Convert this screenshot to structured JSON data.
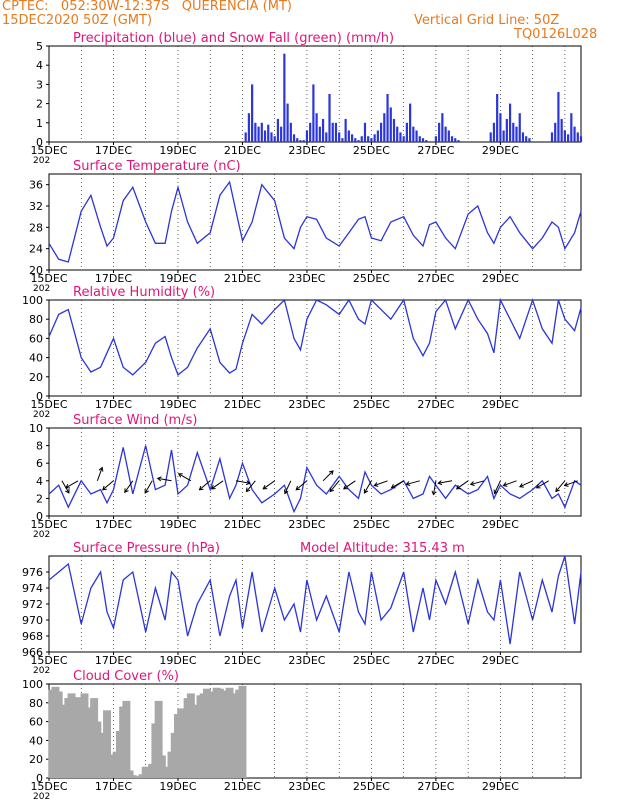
{
  "header": {
    "line1": "CPTEC:   052:30W-12:37S   QUERENCIA (MT)",
    "line2": "15DEC2020 50Z (GMT)",
    "grid_note": "Vertical Grid Line: 50Z",
    "code": "TQ0126L028"
  },
  "colors": {
    "header": "#e87a1e",
    "title": "#e0157a",
    "series": "#2b35d8",
    "snow": "#2aa52a",
    "cloud": "#a8a8a8",
    "grid": "#000000"
  },
  "x_tick_labels": [
    "15DEC",
    "17DEC",
    "19DEC",
    "21DEC",
    "23DEC",
    "25DEC",
    "27DEC",
    "29DEC"
  ],
  "stub_label": "202",
  "chart_data": [
    {
      "type": "bar",
      "title": "Precipitation (blue) and Snow Fall (green) (mm/h)",
      "ylim": [
        0,
        5
      ],
      "yticks": [
        "0",
        "1",
        "2",
        "3",
        "4",
        "5"
      ],
      "x": [
        6.1,
        6.2,
        6.3,
        6.4,
        6.5,
        6.6,
        6.7,
        6.8,
        6.9,
        7.0,
        7.1,
        7.2,
        7.3,
        7.4,
        7.5,
        7.6,
        7.7,
        7.8,
        7.9,
        8.0,
        8.1,
        8.2,
        8.3,
        8.4,
        8.5,
        8.6,
        8.7,
        8.8,
        8.9,
        9.0,
        9.1,
        9.2,
        9.3,
        9.4,
        9.5,
        9.6,
        9.7,
        9.8,
        9.9,
        10.0,
        10.1,
        10.2,
        10.3,
        10.4,
        10.5,
        10.6,
        10.7,
        10.8,
        10.9,
        11.0,
        11.1,
        11.2,
        11.3,
        11.4,
        11.5,
        11.6,
        11.7,
        12.0,
        12.1,
        12.2,
        12.3,
        12.4,
        12.5,
        12.6,
        12.7,
        13.7,
        13.8,
        13.9,
        14.0,
        14.1,
        14.2,
        14.3,
        14.4,
        14.5,
        14.6,
        14.7,
        14.8,
        14.9,
        15.6,
        15.7,
        15.8,
        15.9,
        16.0,
        16.1,
        16.2,
        16.3,
        16.4,
        16.5
      ],
      "series": [
        {
          "name": "Precipitation",
          "values": [
            0.5,
            1.5,
            3.0,
            1.0,
            0.8,
            1.0,
            0.6,
            0.9,
            0.5,
            0.3,
            1.2,
            0.8,
            4.6,
            2.0,
            1.0,
            0.4,
            0.2,
            0.1,
            0.1,
            0.6,
            1.0,
            3.0,
            1.5,
            0.8,
            1.2,
            0.5,
            2.5,
            1.0,
            1.0,
            0.5,
            0.2,
            1.2,
            0.6,
            0.4,
            0.2,
            0.1,
            0.3,
            1.0,
            0.3,
            0.2,
            0.4,
            0.6,
            1.0,
            1.5,
            2.5,
            1.8,
            1.2,
            0.8,
            0.5,
            0.3,
            1.0,
            2.0,
            0.8,
            0.6,
            0.3,
            0.2,
            0.1,
            0.3,
            1.0,
            1.5,
            0.8,
            0.6,
            0.3,
            0.2,
            0.1,
            0.5,
            1.0,
            2.5,
            1.5,
            0.6,
            1.2,
            2.0,
            1.0,
            0.8,
            1.5,
            0.5,
            0.3,
            0.2,
            0.5,
            1.0,
            2.6,
            1.2,
            0.6,
            0.4,
            1.5,
            0.8,
            0.5,
            0.3
          ]
        },
        {
          "name": "Snow Fall",
          "values": [
            0,
            0,
            0,
            0,
            0,
            0,
            0,
            0,
            0,
            0,
            0,
            0,
            0,
            0,
            0,
            0,
            0,
            0,
            0,
            0,
            0,
            0,
            0,
            0,
            0,
            0,
            0,
            0,
            0,
            0,
            0,
            0,
            0,
            0,
            0,
            0,
            0,
            0,
            0,
            0,
            0,
            0,
            0,
            0,
            0,
            0,
            0,
            0,
            0,
            0,
            0,
            0,
            0,
            0,
            0,
            0,
            0,
            0,
            0,
            0,
            0,
            0,
            0,
            0,
            0,
            0,
            0,
            0,
            0,
            0,
            0,
            0,
            0,
            0,
            0,
            0,
            0,
            0,
            0,
            0,
            0,
            0,
            0,
            0,
            0,
            0,
            0,
            0
          ]
        }
      ]
    },
    {
      "type": "line",
      "title": "Surface Temperature (nC)",
      "ylim": [
        20,
        38
      ],
      "yticks": [
        "20",
        "24",
        "28",
        "32",
        "36"
      ],
      "x": [
        0,
        0.3,
        0.6,
        1.0,
        1.3,
        1.6,
        1.8,
        2.0,
        2.3,
        2.6,
        3.0,
        3.3,
        3.6,
        3.8,
        4.0,
        4.3,
        4.6,
        5.0,
        5.3,
        5.6,
        5.8,
        6.0,
        6.3,
        6.6,
        7.0,
        7.3,
        7.6,
        7.8,
        8.0,
        8.3,
        8.6,
        9.0,
        9.3,
        9.6,
        9.8,
        10.0,
        10.3,
        10.6,
        11.0,
        11.3,
        11.6,
        11.8,
        12.0,
        12.3,
        12.6,
        13.0,
        13.3,
        13.6,
        13.8,
        14.0,
        14.3,
        14.6,
        15.0,
        15.3,
        15.6,
        15.8,
        16.0,
        16.3,
        16.5
      ],
      "values": [
        25,
        22,
        21.5,
        31,
        34,
        28,
        24.5,
        26,
        33,
        35.5,
        29,
        25,
        25,
        31,
        35.5,
        29,
        25,
        27,
        34,
        36.5,
        31,
        25.5,
        29,
        36,
        33,
        26,
        24,
        28,
        30,
        29.5,
        26,
        24.5,
        27,
        29.5,
        30,
        26,
        25.5,
        29,
        30,
        26.5,
        24.5,
        28.5,
        29,
        26,
        24,
        30.5,
        32,
        27,
        25,
        28,
        30,
        27,
        24,
        26,
        29,
        28,
        24,
        27,
        31
      ]
    },
    {
      "type": "line",
      "title": "Relative Humidity (%)",
      "ylim": [
        0,
        100
      ],
      "yticks": [
        "0",
        "20",
        "40",
        "60",
        "80",
        "100"
      ],
      "x": [
        0,
        0.3,
        0.6,
        1.0,
        1.3,
        1.6,
        1.8,
        2.0,
        2.3,
        2.6,
        3.0,
        3.3,
        3.6,
        3.8,
        4.0,
        4.3,
        4.6,
        5.0,
        5.3,
        5.6,
        5.8,
        6.0,
        6.3,
        6.6,
        7.0,
        7.3,
        7.6,
        7.8,
        8.0,
        8.3,
        8.6,
        9.0,
        9.3,
        9.6,
        9.8,
        10.0,
        10.3,
        10.6,
        11.0,
        11.3,
        11.6,
        11.8,
        12.0,
        12.3,
        12.6,
        13.0,
        13.3,
        13.6,
        13.8,
        14.0,
        14.3,
        14.6,
        15.0,
        15.3,
        15.6,
        15.8,
        16.0,
        16.3,
        16.5
      ],
      "values": [
        62,
        85,
        90,
        40,
        25,
        30,
        45,
        60,
        30,
        22,
        35,
        55,
        62,
        40,
        22,
        30,
        50,
        70,
        35,
        24,
        28,
        55,
        85,
        75,
        90,
        100,
        60,
        48,
        80,
        100,
        95,
        85,
        100,
        80,
        75,
        100,
        90,
        80,
        100,
        60,
        42,
        55,
        88,
        100,
        70,
        100,
        80,
        65,
        45,
        100,
        80,
        60,
        100,
        70,
        55,
        100,
        80,
        68,
        92
      ]
    },
    {
      "type": "line",
      "title": "Surface Wind (m/s)",
      "ylim": [
        0,
        10
      ],
      "yticks": [
        "0",
        "2",
        "4",
        "6",
        "8",
        "10"
      ],
      "x": [
        0,
        0.3,
        0.6,
        1.0,
        1.3,
        1.6,
        1.8,
        2.0,
        2.3,
        2.6,
        3.0,
        3.3,
        3.6,
        3.8,
        4.0,
        4.3,
        4.6,
        5.0,
        5.3,
        5.6,
        5.8,
        6.0,
        6.3,
        6.6,
        7.0,
        7.3,
        7.6,
        7.8,
        8.0,
        8.3,
        8.6,
        9.0,
        9.3,
        9.6,
        9.8,
        10.0,
        10.3,
        10.6,
        11.0,
        11.3,
        11.6,
        11.8,
        12.0,
        12.3,
        12.6,
        13.0,
        13.3,
        13.6,
        13.8,
        14.0,
        14.3,
        14.6,
        15.0,
        15.3,
        15.6,
        15.8,
        16.0,
        16.3,
        16.5
      ],
      "values": [
        2.5,
        3.5,
        1.0,
        4.0,
        2.5,
        3.0,
        1.5,
        3.0,
        7.8,
        2.5,
        8.0,
        3.0,
        3.5,
        7.5,
        2.5,
        3.5,
        7.2,
        3.0,
        6.5,
        2.0,
        3.5,
        6.0,
        3.0,
        1.5,
        2.5,
        3.5,
        0.5,
        2.0,
        5.5,
        3.5,
        2.5,
        4.5,
        3.0,
        2.0,
        5.0,
        3.5,
        2.5,
        3.0,
        4.0,
        2.0,
        2.5,
        4.5,
        3.5,
        2.0,
        3.5,
        2.5,
        3.0,
        4.5,
        2.0,
        3.5,
        2.5,
        2.0,
        3.0,
        4.0,
        2.0,
        2.5,
        1.0,
        4.0,
        3.5
      ],
      "arrows_x": [
        0.4,
        0.9,
        1.5,
        2.0,
        2.6,
        3.2,
        3.8,
        4.4,
        5.0,
        5.4,
        5.8,
        6.4,
        7.0,
        7.5,
        8.0,
        8.5,
        9.0,
        9.5,
        10.0,
        10.5,
        11.0,
        11.5,
        12.0,
        12.5,
        13.0,
        13.5,
        14.0,
        14.5,
        15.0,
        15.5,
        16.0,
        16.4
      ],
      "arrows_dir_deg": [
        300,
        210,
        70,
        220,
        235,
        240,
        170,
        150,
        220,
        215,
        350,
        230,
        215,
        245,
        220,
        45,
        230,
        215,
        240,
        200,
        210,
        195,
        260,
        190,
        215,
        195,
        245,
        200,
        205,
        210,
        230,
        200
      ]
    },
    {
      "type": "line",
      "title": "Surface Pressure (hPa)",
      "annotation": "Model Altitude: 315.43 m",
      "ylim": [
        966,
        978
      ],
      "yticks": [
        "966",
        "968",
        "970",
        "972",
        "974",
        "976"
      ],
      "x": [
        0,
        0.3,
        0.6,
        1.0,
        1.3,
        1.6,
        1.8,
        2.0,
        2.3,
        2.6,
        3.0,
        3.3,
        3.6,
        3.8,
        4.0,
        4.3,
        4.6,
        5.0,
        5.3,
        5.6,
        5.8,
        6.0,
        6.3,
        6.6,
        7.0,
        7.3,
        7.6,
        7.8,
        8.0,
        8.3,
        8.6,
        9.0,
        9.3,
        9.6,
        9.8,
        10.0,
        10.3,
        10.6,
        11.0,
        11.3,
        11.6,
        11.8,
        12.0,
        12.3,
        12.6,
        13.0,
        13.3,
        13.6,
        13.8,
        14.0,
        14.3,
        14.6,
        15.0,
        15.3,
        15.6,
        15.8,
        16.0,
        16.3,
        16.5
      ],
      "values": [
        975,
        976,
        977,
        969.5,
        974,
        976,
        971,
        969,
        975,
        976,
        968.5,
        974,
        970,
        976,
        975,
        968,
        972,
        975,
        968,
        973,
        975,
        969,
        976,
        968.5,
        974,
        970,
        972,
        968.5,
        975,
        970,
        973,
        968.5,
        976,
        971,
        969.5,
        976,
        970,
        971.5,
        976,
        968.5,
        974,
        970,
        975,
        972,
        976,
        969.5,
        975,
        971,
        970,
        975,
        967,
        976,
        970,
        975,
        971,
        975.5,
        978,
        969.5,
        976
      ]
    },
    {
      "type": "bar",
      "title": "Cloud Cover (%)",
      "ylim": [
        0,
        100
      ],
      "yticks": [
        "0",
        "20",
        "40",
        "60",
        "80",
        "100"
      ],
      "x": [
        0.1,
        0.2,
        0.3,
        0.4,
        0.5,
        0.6,
        0.7,
        0.8,
        0.9,
        1.0,
        1.1,
        1.2,
        1.3,
        1.4,
        1.5,
        1.6,
        1.7,
        1.8,
        1.9,
        2.0,
        2.1,
        2.2,
        2.3,
        2.4,
        2.5,
        2.6,
        2.7,
        2.8,
        2.9,
        3.0,
        3.1,
        3.2,
        3.3,
        3.4,
        3.5,
        3.6,
        3.7,
        3.8,
        3.9,
        4.0,
        4.1,
        4.2,
        4.3,
        4.4,
        4.5,
        4.6,
        4.7,
        4.8,
        4.9,
        5.0,
        5.1,
        5.2,
        5.3,
        5.4,
        5.5,
        5.6,
        5.7,
        5.8,
        5.9,
        6.0
      ],
      "values": [
        94,
        97,
        92,
        78,
        12,
        85,
        90,
        72,
        86,
        78,
        90,
        62,
        75,
        85,
        60,
        28,
        48,
        72,
        25,
        5,
        28,
        50,
        76,
        82,
        8,
        3,
        0,
        2,
        4,
        12,
        3,
        15,
        58,
        82,
        24,
        0,
        12,
        28,
        48,
        68,
        74,
        55,
        85,
        90,
        78,
        70,
        88,
        90,
        95,
        10,
        92,
        96,
        95,
        93,
        88,
        96,
        85,
        90,
        94,
        98
      ]
    }
  ]
}
